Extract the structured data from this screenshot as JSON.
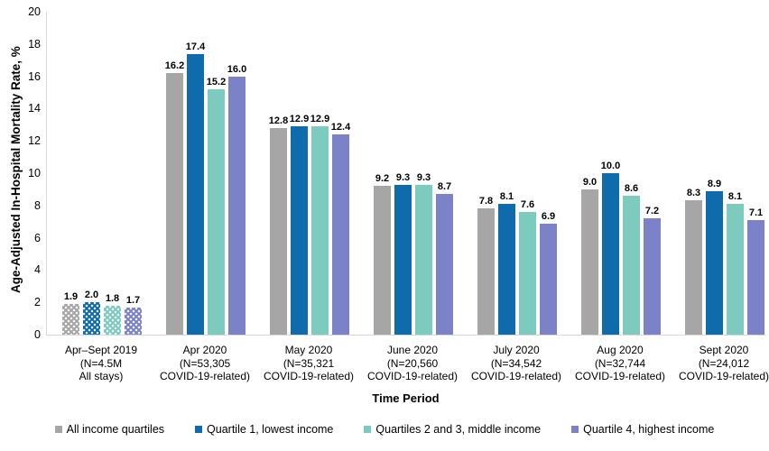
{
  "chart_data": {
    "type": "bar",
    "title": "",
    "ylabel": "Age-Adjusted In-Hospital Mortality Rate, %",
    "xlabel": "Time Period",
    "ylim": [
      0,
      20
    ],
    "ytick_step": 2,
    "yticks": [
      0,
      2,
      4,
      6,
      8,
      10,
      12,
      14,
      16,
      18,
      20
    ],
    "grid": false,
    "axis_color": "#d9d9d9",
    "legend_position": "bottom",
    "first_category_fill": "dotted-pattern",
    "categories": [
      {
        "lines": [
          "Apr–Sept 2019",
          "(N=4.5M",
          "All stays)"
        ]
      },
      {
        "lines": [
          "Apr 2020",
          "(N=53,305",
          "COVID-19-related)"
        ]
      },
      {
        "lines": [
          "May 2020",
          "(N=35,321",
          "COVID-19-related)"
        ]
      },
      {
        "lines": [
          "June 2020",
          "(N=20,560",
          "COVID-19-related)"
        ]
      },
      {
        "lines": [
          "July 2020",
          "(N=34,542",
          "COVID-19-related)"
        ]
      },
      {
        "lines": [
          "Aug 2020",
          "(N=32,744",
          "COVID-19-related)"
        ]
      },
      {
        "lines": [
          "Sept 2020",
          "(N=24,012",
          "COVID-19-related)"
        ]
      }
    ],
    "series": [
      {
        "name": "All income quartiles",
        "color": "#a6a6a6",
        "values": [
          1.9,
          16.2,
          12.8,
          9.2,
          7.8,
          9.0,
          8.3
        ]
      },
      {
        "name": "Quartile 1, lowest income",
        "color": "#106bad",
        "values": [
          2.0,
          17.4,
          12.9,
          9.3,
          8.1,
          10.0,
          8.9
        ]
      },
      {
        "name": "Quartiles 2 and 3, middle income",
        "color": "#7dcbbf",
        "values": [
          1.8,
          15.2,
          12.9,
          9.3,
          7.6,
          8.6,
          8.1
        ]
      },
      {
        "name": "Quartile 4, highest income",
        "color": "#7c82c8",
        "values": [
          1.7,
          16.0,
          12.4,
          8.7,
          6.9,
          7.2,
          7.1
        ]
      }
    ]
  }
}
